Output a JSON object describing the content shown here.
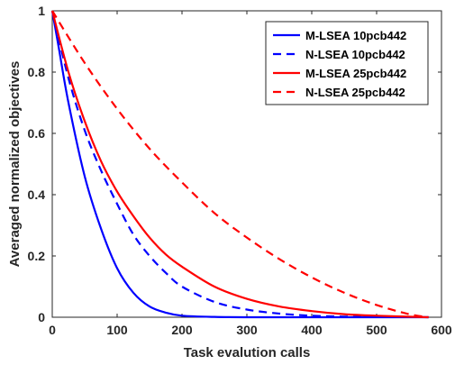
{
  "chart_data": {
    "type": "line",
    "xlabel": "Task evalution calls",
    "ylabel": "Averaged normalized objectives",
    "xlim": [
      0,
      600
    ],
    "ylim": [
      0,
      1
    ],
    "xticks": [
      0,
      100,
      200,
      300,
      400,
      500,
      600
    ],
    "yticks": [
      0,
      0.2,
      0.4,
      0.6,
      0.8,
      1
    ],
    "ytick_labels": [
      "0",
      "0.2",
      "0.4",
      "0.6",
      "0.8",
      "1"
    ],
    "grid": false,
    "legend_position": "top-right",
    "series": [
      {
        "name": "M-LSEA 10pcb442",
        "color": "#0000ff",
        "style": "solid",
        "x": [
          0,
          10,
          25,
          50,
          75,
          100,
          125,
          150,
          175,
          200,
          250,
          300,
          400,
          500,
          580
        ],
        "y": [
          1.0,
          0.88,
          0.7,
          0.46,
          0.29,
          0.16,
          0.08,
          0.035,
          0.015,
          0.005,
          0.001,
          0.0,
          0.0,
          0.0,
          0.0
        ]
      },
      {
        "name": "N-LSEA 10pcb442",
        "color": "#0000ff",
        "style": "dashed",
        "x": [
          0,
          25,
          50,
          75,
          100,
          125,
          150,
          175,
          200,
          250,
          300,
          350,
          400,
          450,
          500,
          580
        ],
        "y": [
          1.0,
          0.78,
          0.61,
          0.48,
          0.37,
          0.27,
          0.2,
          0.145,
          0.1,
          0.05,
          0.025,
          0.012,
          0.005,
          0.002,
          0.001,
          0.0
        ]
      },
      {
        "name": "M-LSEA 25pcb442",
        "color": "#ff0000",
        "style": "solid",
        "x": [
          0,
          25,
          50,
          75,
          100,
          125,
          150,
          175,
          200,
          250,
          300,
          350,
          400,
          450,
          500,
          580
        ],
        "y": [
          1.0,
          0.8,
          0.64,
          0.51,
          0.41,
          0.33,
          0.26,
          0.205,
          0.165,
          0.1,
          0.06,
          0.035,
          0.02,
          0.01,
          0.005,
          0.0
        ]
      },
      {
        "name": "N-LSEA 25pcb442",
        "color": "#ff0000",
        "style": "dashed",
        "x": [
          0,
          50,
          100,
          150,
          200,
          250,
          300,
          350,
          400,
          450,
          500,
          550,
          580
        ],
        "y": [
          1.0,
          0.83,
          0.68,
          0.55,
          0.44,
          0.34,
          0.26,
          0.19,
          0.13,
          0.08,
          0.04,
          0.01,
          0.0
        ]
      }
    ]
  }
}
